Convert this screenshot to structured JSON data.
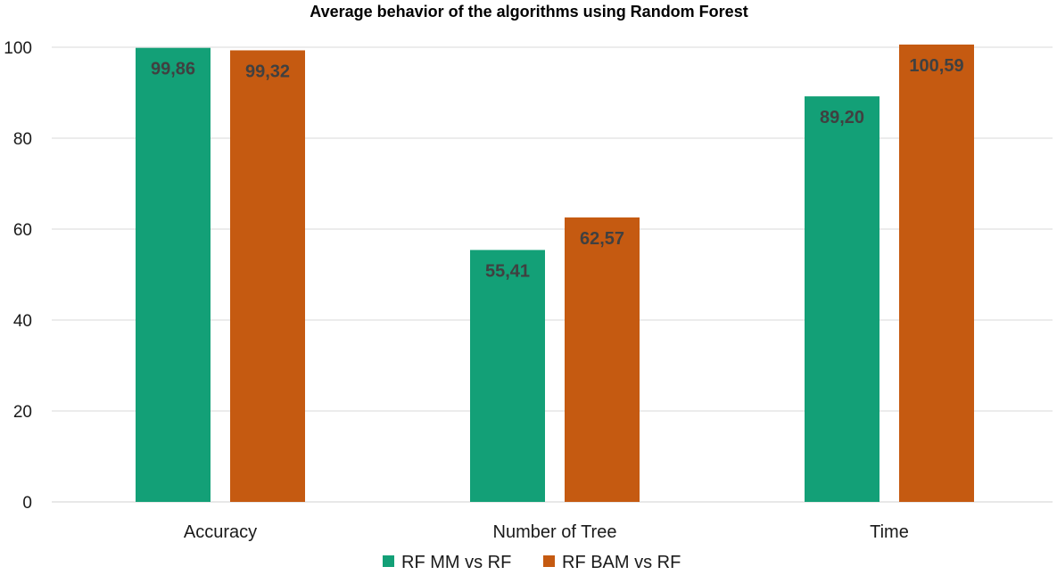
{
  "chart_data": {
    "type": "bar",
    "title": "Average behavior of the algorithms using Random Forest",
    "xlabel": "",
    "ylabel": "",
    "categories": [
      "Accuracy",
      "Number of Tree",
      "Time"
    ],
    "series": [
      {
        "name": "RF MM vs RF",
        "color": "#13a077",
        "values": [
          99.86,
          55.41,
          89.2
        ],
        "labels": [
          "99,86",
          "55,41",
          "89,20"
        ]
      },
      {
        "name": "RF BAM vs RF",
        "color": "#c55a11",
        "values": [
          99.32,
          62.57,
          100.59
        ],
        "labels": [
          "99,32",
          "62,57",
          "100,59"
        ]
      }
    ],
    "ylim": [
      0,
      100
    ],
    "yticks": [
      0,
      20,
      40,
      60,
      80,
      100
    ],
    "grid": true,
    "legend_position": "bottom"
  }
}
